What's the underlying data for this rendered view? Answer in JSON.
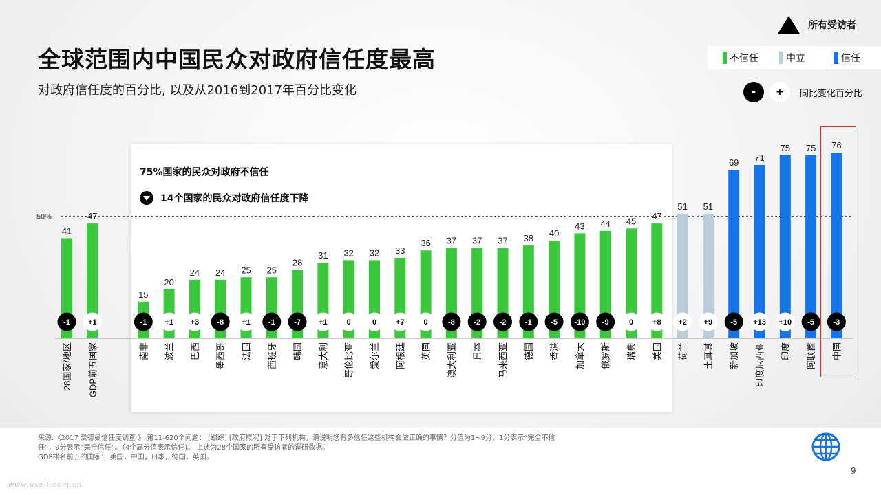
{
  "title": "全球范围内中国民众对政府信任度最高",
  "subtitle": "对政府信任度的百分比, 以及从2016到2017年百分比变化",
  "audience": {
    "label": "所有受访者",
    "icon": "triangle-icon"
  },
  "legend": {
    "items": [
      {
        "label": "不信任",
        "color": "#3cc83c"
      },
      {
        "label": "中立",
        "color": "#b9ced8"
      },
      {
        "label": "信任",
        "color": "#1473e6"
      }
    ]
  },
  "change_legend": {
    "negative_symbol": "-",
    "positive_symbol": "+",
    "label": "同比变化百分比"
  },
  "callout": {
    "line1": "75%国家的民众对政府不信任",
    "line2": "14个国家的民众对政府信任度下降"
  },
  "chart_data": {
    "type": "bar",
    "reference_line": {
      "value": 50,
      "label": "50%"
    },
    "ylim": [
      0,
      100
    ],
    "categories": [
      "28国家/地区",
      "GDP前五国家",
      "南非",
      "波兰",
      "巴西",
      "墨西哥",
      "法国",
      "西班牙",
      "韩国",
      "意大利",
      "哥伦比亚",
      "爱尔兰",
      "阿根廷",
      "英国",
      "澳大利亚",
      "日本",
      "马来西亚",
      "德国",
      "香港",
      "加拿大",
      "俄罗斯",
      "瑞典",
      "美国",
      "荷兰",
      "土耳其",
      "新加坡",
      "印度尼西亚",
      "印度",
      "阿联酋",
      "中国"
    ],
    "values": [
      41,
      47,
      15,
      20,
      24,
      24,
      25,
      25,
      28,
      31,
      32,
      32,
      33,
      36,
      37,
      37,
      37,
      38,
      40,
      43,
      44,
      45,
      47,
      51,
      51,
      69,
      71,
      75,
      75,
      76
    ],
    "changes": [
      "-1",
      "+1",
      "-1",
      "+1",
      "+3",
      "-8",
      "+1",
      "-1",
      "-7",
      "+1",
      "0",
      "0",
      "+7",
      "0",
      "-8",
      "-2",
      "-2",
      "-1",
      "-5",
      "-10",
      "-9",
      "0",
      "+8",
      "+2",
      "+9",
      "-5",
      "+13",
      "+10",
      "-5",
      "-3"
    ],
    "groups": [
      "不信任",
      "不信任",
      "不信任",
      "不信任",
      "不信任",
      "不信任",
      "不信任",
      "不信任",
      "不信任",
      "不信任",
      "不信任",
      "不信任",
      "不信任",
      "不信任",
      "不信任",
      "不信任",
      "不信任",
      "不信任",
      "不信任",
      "不信任",
      "不信任",
      "不信任",
      "不信任",
      "中立",
      "中立",
      "信任",
      "信任",
      "信任",
      "信任",
      "信任"
    ],
    "colors": {
      "不信任": "#3cc83c",
      "中立": "#b9ced8",
      "信任": "#1473e6"
    }
  },
  "source": {
    "line1": "来源:《2017 爱德曼信任度调查 》 第11-620个问题： [跟踪] [政府概况] 对于下列机构，请说明您有多信任这些机构会做正确的事情？分值为1~9分，1分表示“完全不信",
    "line2": "任”，9分表示“完全信任”。（4个高分值表示信任)。 上述为28个国家的所有受访者的调研数据。",
    "line3": "GDP排名前五的国家： 美国，中国，日本，德国，英国。"
  },
  "page_number": "9",
  "watermark": "www.useit.com.cn"
}
